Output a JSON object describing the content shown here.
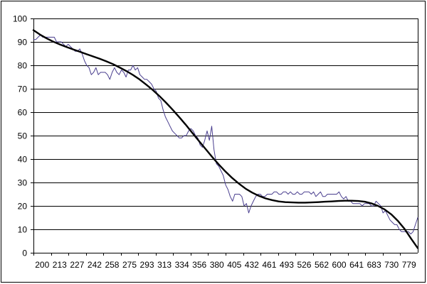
{
  "chart_data": {
    "type": "line",
    "title": "",
    "xlabel": "",
    "ylabel": "",
    "ylim": [
      0,
      100
    ],
    "grid": true,
    "legend": "none",
    "y_ticks": [
      0,
      10,
      20,
      30,
      40,
      50,
      60,
      70,
      80,
      90,
      100
    ],
    "x_tick_labels": [
      "200",
      "213",
      "227",
      "242",
      "258",
      "275",
      "293",
      "313",
      "334",
      "356",
      "380",
      "405",
      "432",
      "461",
      "493",
      "526",
      "562",
      "600",
      "641",
      "683",
      "730",
      "779"
    ],
    "series": [
      {
        "style": "raw",
        "color": "#4a3f8f",
        "values": [
          91,
          91,
          92,
          93,
          92,
          92,
          92,
          92,
          92,
          92,
          90,
          90,
          90,
          89,
          88,
          89,
          88,
          87,
          86,
          86,
          87,
          85,
          82,
          80,
          79,
          76,
          77,
          79,
          76,
          77,
          77,
          77,
          76,
          74,
          77,
          79,
          77,
          76,
          78,
          77,
          75,
          78,
          78,
          80,
          78,
          79,
          76,
          75,
          74,
          74,
          73,
          72,
          70,
          69,
          66,
          65,
          61,
          58,
          56,
          54,
          52,
          51,
          50,
          49,
          49,
          50,
          50,
          52,
          53,
          52,
          50,
          49,
          46,
          45,
          48,
          52,
          48,
          54,
          44,
          38,
          37,
          35,
          33,
          29,
          27,
          24,
          22,
          25,
          25,
          25,
          24,
          20,
          21,
          17,
          20,
          22,
          24,
          25,
          25,
          24,
          24,
          25,
          25,
          25,
          26,
          26,
          25,
          25,
          26,
          26,
          25,
          26,
          25,
          25,
          26,
          25,
          25,
          26,
          26,
          26,
          25,
          26,
          24,
          25,
          26,
          24,
          24,
          25,
          25,
          25,
          25,
          25,
          26,
          24,
          23,
          24,
          22,
          22,
          21,
          21,
          21,
          21,
          20,
          21,
          21,
          21,
          20,
          20,
          22,
          21,
          20,
          17,
          18,
          16,
          14,
          13,
          12,
          12,
          10,
          9,
          9,
          9,
          9,
          8,
          9,
          12,
          15
        ]
      },
      {
        "style": "trend",
        "color": "#000000",
        "values": [
          95.0,
          93.1,
          91.5,
          90.1,
          88.9,
          87.8,
          86.8,
          85.8,
          84.8,
          83.8,
          82.8,
          81.7,
          80.5,
          79.1,
          77.6,
          75.9,
          74.0,
          71.8,
          69.5,
          66.9,
          64.1,
          61.1,
          57.9,
          54.6,
          51.1,
          47.6,
          44.2,
          40.8,
          37.6,
          34.6,
          31.9,
          29.5,
          27.4,
          25.7,
          24.3,
          23.2,
          22.5,
          21.9,
          21.6,
          21.5,
          21.4,
          21.4,
          21.5,
          21.6,
          21.8,
          21.9,
          22.1,
          22.2,
          22.2,
          22.1,
          21.8,
          21.1,
          20.0,
          18.5,
          16.4,
          13.6,
          10.2,
          6.0,
          2.0
        ]
      }
    ]
  }
}
